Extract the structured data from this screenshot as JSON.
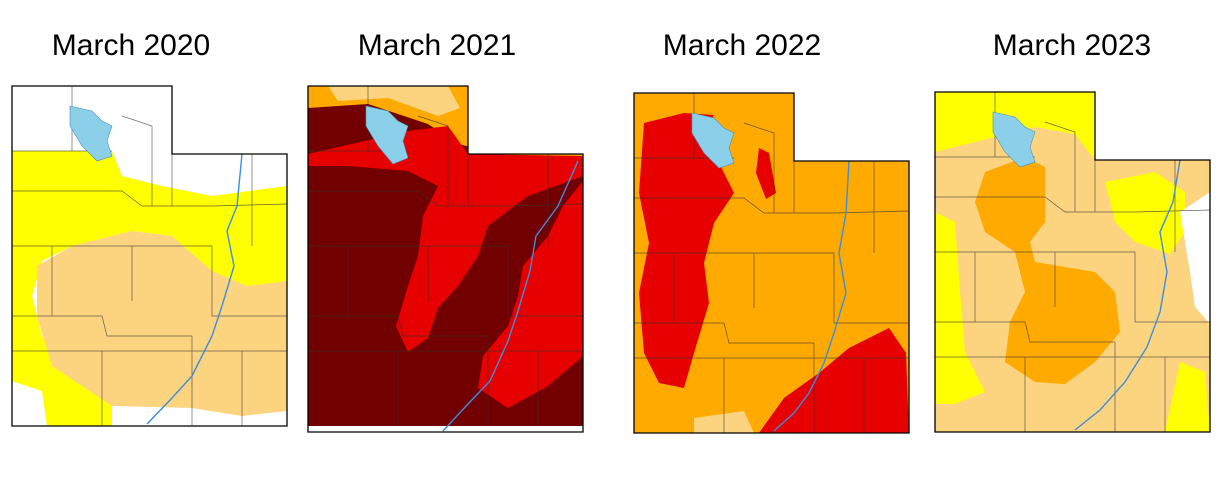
{
  "maps": [
    {
      "title": "March 2020"
    },
    {
      "title": "March 2021"
    },
    {
      "title": "March 2022"
    },
    {
      "title": "March 2023"
    }
  ]
}
